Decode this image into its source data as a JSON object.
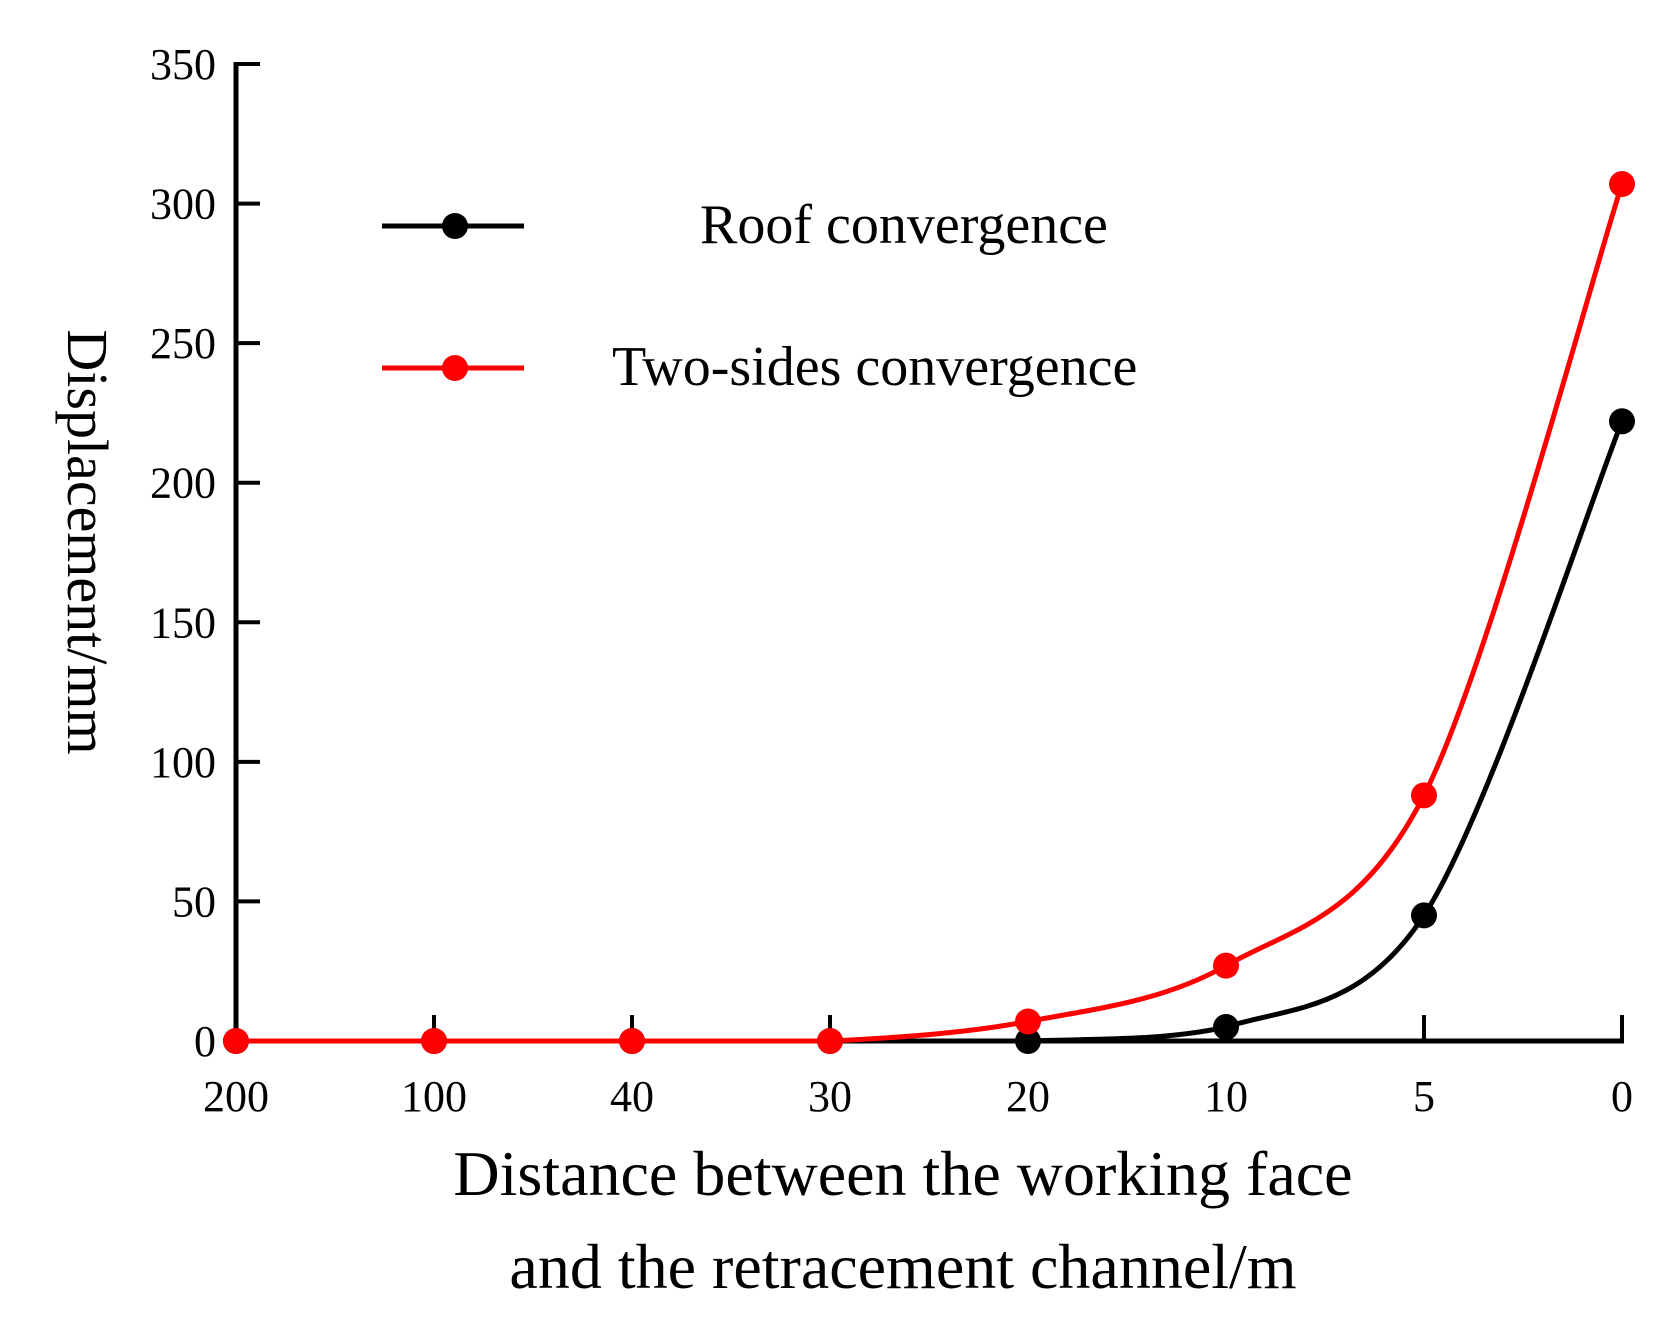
{
  "chart_data": {
    "type": "line",
    "xlabel_lines": [
      "Distance between the working face",
      "and the retracement channel/m"
    ],
    "ylabel": "Displacement/mm",
    "categories": [
      "200",
      "100",
      "40",
      "30",
      "20",
      "10",
      "5",
      "0"
    ],
    "y_ticks": [
      "0",
      "50",
      "100",
      "150",
      "200",
      "250",
      "300",
      "350"
    ],
    "ylim": [
      0,
      350
    ],
    "grid": false,
    "legend_position": "top-left",
    "series": [
      {
        "name": "Roof convergence",
        "color": "#000000",
        "values": [
          0,
          0,
          0,
          0,
          0,
          5,
          45,
          222
        ]
      },
      {
        "name": "Two-sides convergence",
        "color": "#ff0000",
        "values": [
          0,
          0,
          0,
          0,
          7,
          27,
          88,
          307
        ]
      }
    ]
  }
}
